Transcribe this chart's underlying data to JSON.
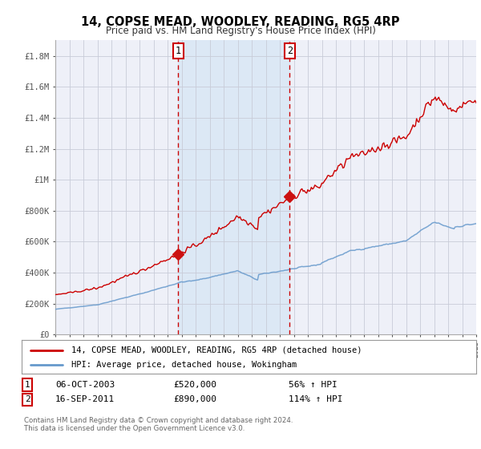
{
  "title": "14, COPSE MEAD, WOODLEY, READING, RG5 4RP",
  "subtitle": "Price paid vs. HM Land Registry's House Price Index (HPI)",
  "sale1_date": "06-OCT-2003",
  "sale1_price": 520000,
  "sale1_pct": "56%",
  "sale2_date": "16-SEP-2011",
  "sale2_price": 890000,
  "sale2_pct": "114%",
  "sale1_year": 2003.76,
  "sale2_year": 2011.71,
  "legend_line1": "14, COPSE MEAD, WOODLEY, READING, RG5 4RP (detached house)",
  "legend_line2": "HPI: Average price, detached house, Wokingham",
  "footer": "Contains HM Land Registry data © Crown copyright and database right 2024.\nThis data is licensed under the Open Government Licence v3.0.",
  "line_color_red": "#cc0000",
  "line_color_blue": "#6699cc",
  "background_color": "#ffffff",
  "plot_bg_color": "#eef0f8",
  "shade_color": "#dce8f5",
  "grid_color": "#c8ccd8",
  "ylim_max": 1900000,
  "xmin": 1995,
  "xmax": 2025
}
